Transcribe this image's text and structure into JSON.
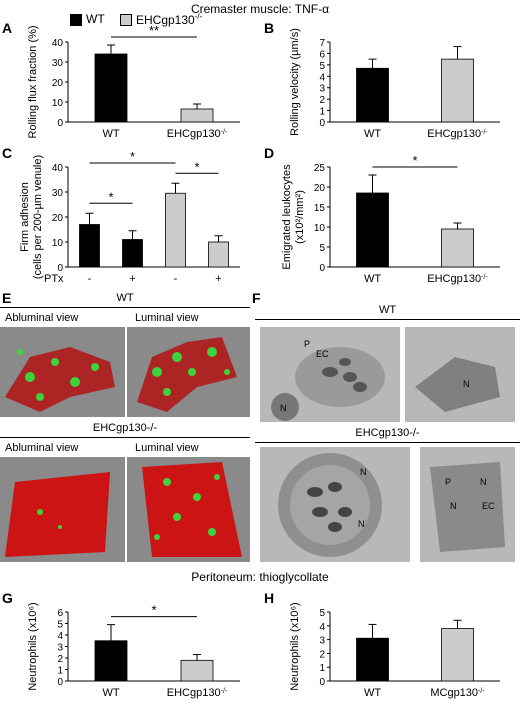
{
  "figure": {
    "title_top": "Cremaster muscle: TNF-α",
    "title_bottom": "Peritoneum: thioglycollate",
    "legend": [
      {
        "label": "WT",
        "color": "#000000"
      },
      {
        "label": "EHCgp130",
        "sup": "-/-",
        "color": "#cccccc"
      }
    ],
    "colors": {
      "wt": "#000000",
      "ko": "#cccccc"
    }
  },
  "panels": {
    "A": {
      "letter": "A"
    },
    "B": {
      "letter": "B"
    },
    "C": {
      "letter": "C"
    },
    "D": {
      "letter": "D"
    },
    "E": {
      "letter": "E"
    },
    "F": {
      "letter": "F"
    },
    "G": {
      "letter": "G"
    },
    "H": {
      "letter": "H"
    }
  },
  "chart_data": [
    {
      "panel": "A",
      "type": "bar",
      "ylabel": "Rolling flux fraction (%)",
      "categories": [
        "WT",
        "EHCgp130-/-"
      ],
      "values": [
        34,
        6.5
      ],
      "errors": [
        4.5,
        2.5
      ],
      "ylim": [
        0,
        40
      ],
      "yticks": [
        0,
        10,
        20,
        30,
        40
      ],
      "significance": [
        {
          "from": 0,
          "to": 1,
          "label": "**"
        }
      ]
    },
    {
      "panel": "B",
      "type": "bar",
      "ylabel": "Rolling velocity (µm/s)",
      "categories": [
        "WT",
        "EHCgp130-/-"
      ],
      "values": [
        4.7,
        5.5
      ],
      "errors": [
        0.8,
        1.1
      ],
      "ylim": [
        0,
        7
      ],
      "yticks": [
        0,
        1,
        2,
        3,
        4,
        5,
        6,
        7
      ],
      "significance": []
    },
    {
      "panel": "C",
      "type": "bar",
      "ylabel": "Firm adhesion (cells per 200-µm venule)",
      "group_label": "PTx",
      "categories": [
        "-",
        "+",
        "-",
        "+"
      ],
      "values": [
        17,
        11,
        29.5,
        10
      ],
      "errors": [
        4.5,
        3.5,
        4,
        2.5
      ],
      "genotype": [
        "WT",
        "WT",
        "EHCgp130-/-",
        "EHCgp130-/-"
      ],
      "ylim": [
        0,
        40
      ],
      "yticks": [
        0,
        10,
        20,
        30,
        40
      ],
      "significance": [
        {
          "from": 0,
          "to": 1,
          "label": "*"
        },
        {
          "from": 0,
          "to": 2,
          "label": "*"
        },
        {
          "from": 2,
          "to": 3,
          "label": "*"
        }
      ]
    },
    {
      "panel": "D",
      "type": "bar",
      "ylabel": "Emigrated leukocytes (x10²/mm²)",
      "categories": [
        "WT",
        "EHCgp130-/-"
      ],
      "values": [
        18.5,
        9.5
      ],
      "errors": [
        4.5,
        1.5
      ],
      "ylim": [
        0,
        25
      ],
      "yticks": [
        0,
        5,
        10,
        15,
        20,
        25
      ],
      "significance": [
        {
          "from": 0,
          "to": 1,
          "label": "*"
        }
      ]
    },
    {
      "panel": "G",
      "type": "bar",
      "ylabel": "Neutrophils (x10⁶)",
      "categories": [
        "WT",
        "EHCgp130-/-"
      ],
      "values": [
        3.5,
        1.8
      ],
      "errors": [
        1.4,
        0.5
      ],
      "ylim": [
        0,
        6
      ],
      "yticks": [
        0,
        1,
        2,
        3,
        4,
        5,
        6
      ],
      "significance": [
        {
          "from": 0,
          "to": 1,
          "label": "*"
        }
      ]
    },
    {
      "panel": "H",
      "type": "bar",
      "ylabel": "Neutrophils (x10⁶)",
      "categories": [
        "WT",
        "MCgp130-/-"
      ],
      "values": [
        3.1,
        3.8
      ],
      "errors": [
        1.0,
        0.6
      ],
      "ylim": [
        0,
        5
      ],
      "yticks": [
        0,
        1,
        2,
        3,
        4,
        5
      ],
      "significance": []
    }
  ],
  "panel_E": {
    "wt_label": "WT",
    "ko_label": "EHCgp130-/-",
    "view_left": "Abluminal view",
    "view_right": "Luminal view"
  },
  "panel_F": {
    "wt_label": "WT",
    "ko_label": "EHCgp130-/-",
    "labels": [
      "P",
      "EC",
      "N",
      "N",
      "N",
      "N",
      "P",
      "N",
      "N",
      "EC"
    ]
  }
}
